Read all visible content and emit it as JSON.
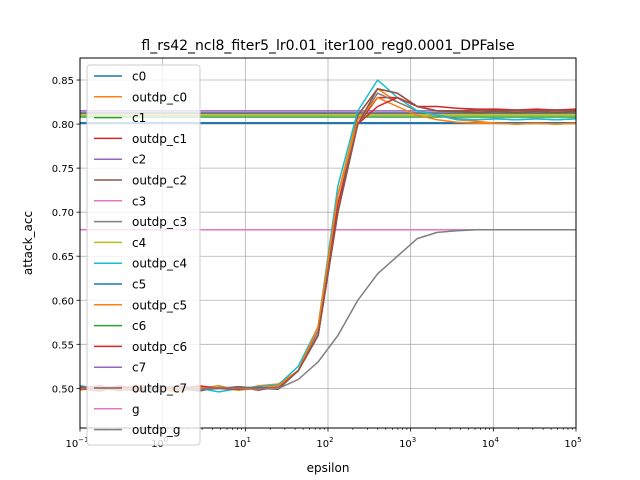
{
  "chart_data": {
    "type": "line",
    "title": "fl_rs42_ncl8_fiter5_lr0.01_iter100_reg0.0001_DPFalse",
    "xlabel": "epsilon",
    "ylabel": "attack_acc",
    "xscale": "log",
    "xlim": [
      0.1,
      100000
    ],
    "ylim": [
      0.455,
      0.875
    ],
    "grid": true,
    "legend_position": "upper left",
    "x_ticks": [
      {
        "value": 0.1,
        "base": "10",
        "exp": "−1"
      },
      {
        "value": 1,
        "base": "10",
        "exp": "0"
      },
      {
        "value": 10,
        "base": "10",
        "exp": "1"
      },
      {
        "value": 100,
        "base": "10",
        "exp": "2"
      },
      {
        "value": 1000,
        "base": "10",
        "exp": "3"
      },
      {
        "value": 10000,
        "base": "10",
        "exp": "4"
      },
      {
        "value": 100000,
        "base": "10",
        "exp": "5"
      }
    ],
    "y_ticks": [
      "0.50",
      "0.55",
      "0.60",
      "0.65",
      "0.70",
      "0.75",
      "0.80",
      "0.85"
    ],
    "constant_series": [
      {
        "name": "c0",
        "color": "#1f77b4",
        "value": 0.801
      },
      {
        "name": "c1",
        "color": "#2ca02c",
        "value": 0.808
      },
      {
        "name": "c2",
        "color": "#9467bd",
        "value": 0.815
      },
      {
        "name": "c3",
        "color": "#e377c2",
        "value": 0.8015
      },
      {
        "name": "c4",
        "color": "#bcbd22",
        "value": 0.81
      },
      {
        "name": "c5",
        "color": "#1f77b4",
        "value": 0.8015
      },
      {
        "name": "c6",
        "color": "#2ca02c",
        "value": 0.812
      },
      {
        "name": "c7",
        "color": "#9467bd",
        "value": 0.813
      },
      {
        "name": "g",
        "color": "#e377c2",
        "value": 0.68
      }
    ],
    "curve_series": [
      {
        "name": "outdp_c0",
        "color": "#ff7f0e",
        "values": [
          0.502,
          0.501,
          0.497,
          0.503,
          0.499,
          0.496,
          0.502,
          0.5,
          0.498,
          0.503,
          0.505,
          0.52,
          0.57,
          0.72,
          0.81,
          0.84,
          0.825,
          0.815,
          0.81,
          0.805,
          0.803,
          0.801,
          0.8,
          0.801,
          0.8,
          0.801
        ]
      },
      {
        "name": "outdp_c1",
        "color": "#d62728",
        "values": [
          0.5,
          0.503,
          0.499,
          0.497,
          0.5,
          0.502,
          0.498,
          0.5,
          0.501,
          0.498,
          0.502,
          0.52,
          0.56,
          0.71,
          0.8,
          0.83,
          0.83,
          0.82,
          0.815,
          0.815,
          0.815,
          0.816,
          0.815,
          0.816,
          0.815,
          0.816
        ]
      },
      {
        "name": "outdp_c2",
        "color": "#8c564b",
        "values": [
          0.499,
          0.502,
          0.5,
          0.498,
          0.503,
          0.5,
          0.497,
          0.501,
          0.499,
          0.5,
          0.5,
          0.52,
          0.56,
          0.7,
          0.81,
          0.84,
          0.835,
          0.82,
          0.815,
          0.814,
          0.813,
          0.814,
          0.813,
          0.814,
          0.813,
          0.814
        ]
      },
      {
        "name": "outdp_c3",
        "color": "#7f7f7f",
        "values": [
          0.501,
          0.5,
          0.503,
          0.499,
          0.501,
          0.498,
          0.502,
          0.5,
          0.501,
          0.499,
          0.501,
          0.52,
          0.565,
          0.72,
          0.8,
          0.835,
          0.825,
          0.815,
          0.81,
          0.806,
          0.805,
          0.806,
          0.805,
          0.806,
          0.805,
          0.806
        ]
      },
      {
        "name": "outdp_c4",
        "color": "#17becf",
        "values": [
          0.503,
          0.499,
          0.501,
          0.5,
          0.497,
          0.502,
          0.5,
          0.496,
          0.5,
          0.502,
          0.504,
          0.525,
          0.57,
          0.73,
          0.815,
          0.85,
          0.83,
          0.815,
          0.81,
          0.805,
          0.805,
          0.806,
          0.805,
          0.806,
          0.805,
          0.806
        ]
      },
      {
        "name": "outdp_c5",
        "color": "#ff7f0e",
        "values": [
          0.498,
          0.502,
          0.5,
          0.503,
          0.499,
          0.501,
          0.5,
          0.503,
          0.498,
          0.5,
          0.503,
          0.52,
          0.57,
          0.72,
          0.805,
          0.83,
          0.82,
          0.81,
          0.805,
          0.802,
          0.801,
          0.801,
          0.8,
          0.801,
          0.8,
          0.801
        ]
      },
      {
        "name": "outdp_c6",
        "color": "#d62728",
        "values": [
          0.5,
          0.497,
          0.502,
          0.5,
          0.501,
          0.499,
          0.503,
          0.5,
          0.499,
          0.501,
          0.5,
          0.52,
          0.56,
          0.7,
          0.8,
          0.82,
          0.83,
          0.82,
          0.82,
          0.818,
          0.817,
          0.817,
          0.816,
          0.817,
          0.816,
          0.817
        ]
      },
      {
        "name": "outdp_c7",
        "color": "#8c564b",
        "values": [
          0.502,
          0.5,
          0.498,
          0.501,
          0.5,
          0.503,
          0.499,
          0.5,
          0.502,
          0.5,
          0.499,
          0.52,
          0.56,
          0.7,
          0.8,
          0.84,
          0.835,
          0.82,
          0.815,
          0.815,
          0.816,
          0.815,
          0.816,
          0.815,
          0.816,
          0.815
        ]
      },
      {
        "name": "outdp_g",
        "color": "#7f7f7f",
        "values": [
          0.5,
          0.501,
          0.499,
          0.5,
          0.502,
          0.5,
          0.499,
          0.501,
          0.5,
          0.5,
          0.5,
          0.51,
          0.53,
          0.56,
          0.6,
          0.63,
          0.65,
          0.67,
          0.677,
          0.679,
          0.68,
          0.68,
          0.68,
          0.68,
          0.68,
          0.68
        ]
      }
    ],
    "legend": [
      "c0",
      "outdp_c0",
      "c1",
      "outdp_c1",
      "c2",
      "outdp_c2",
      "c3",
      "outdp_c3",
      "c4",
      "outdp_c4",
      "c5",
      "outdp_c5",
      "c6",
      "outdp_c6",
      "c7",
      "outdp_c7",
      "g",
      "outdp_g"
    ]
  }
}
